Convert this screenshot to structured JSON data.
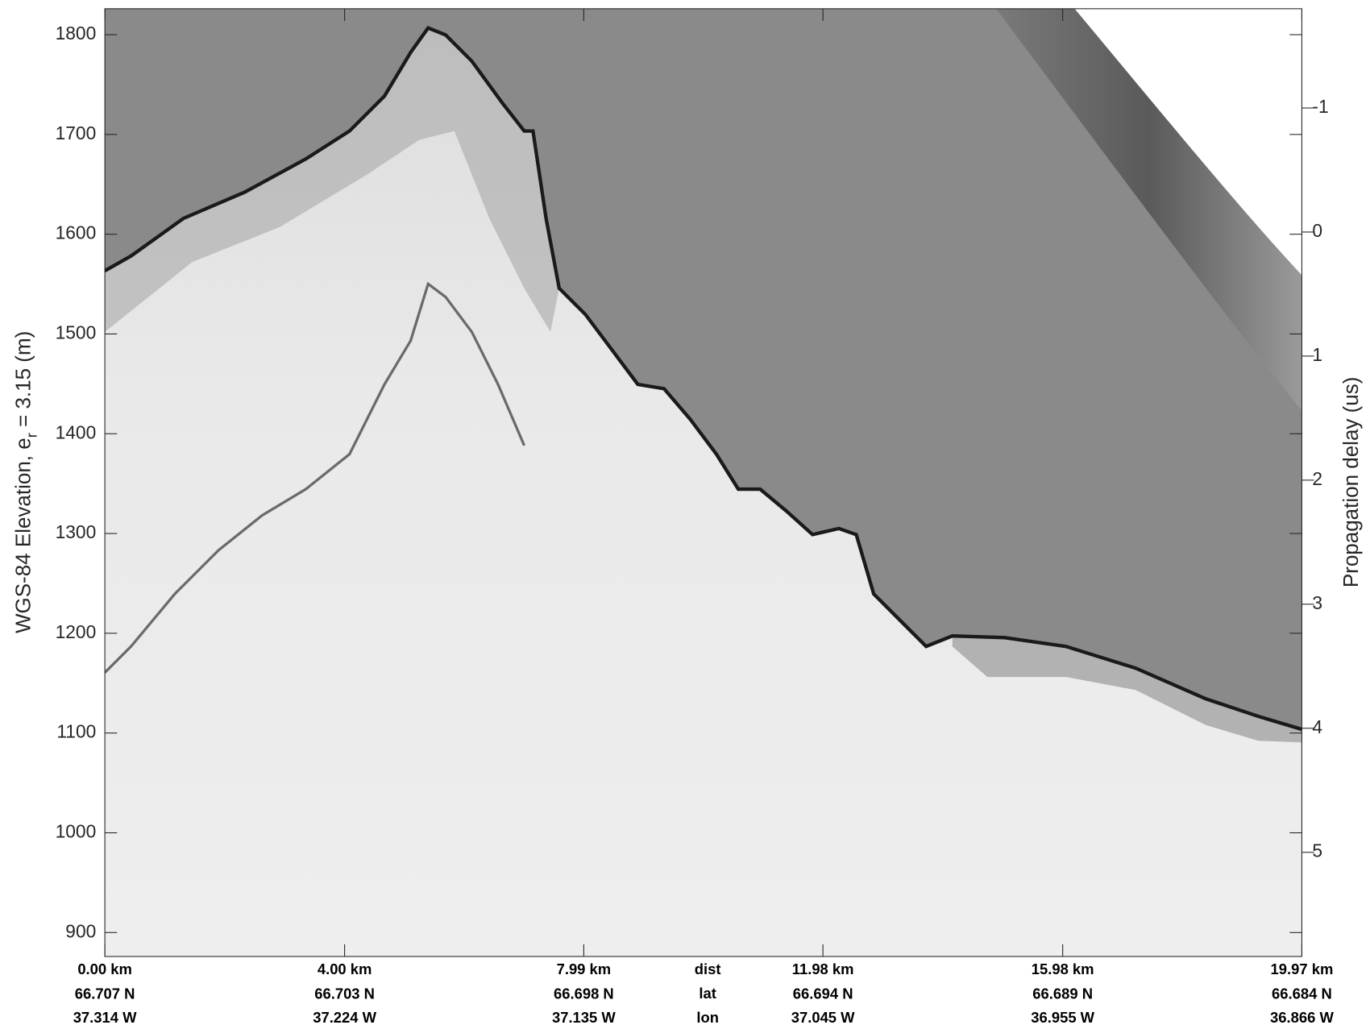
{
  "chart_data": {
    "type": "radargram",
    "ylabel": "WGS-84 Elevation, e",
    "ylabel_sub": "r",
    "ylabel_rest": " = 3.15 (m)",
    "y2label": "Propagation delay (us)",
    "ylim": [
      876,
      1826
    ],
    "yticks": [
      900,
      1000,
      1100,
      1200,
      1300,
      1400,
      1500,
      1600,
      1700,
      1800
    ],
    "y2lim": [
      5.84,
      -1.8
    ],
    "y2ticks": [
      -1,
      0,
      1,
      2,
      3,
      4,
      5
    ],
    "xlim": [
      0,
      19.97
    ],
    "xticks": [
      {
        "value": 0,
        "label": "0.00 km"
      },
      {
        "value": 4.0,
        "label": "4.00 km"
      },
      {
        "value": 7.99,
        "label": "7.99 km"
      },
      {
        "value": 11.98,
        "label": "11.98 km"
      },
      {
        "value": 15.98,
        "label": "15.98 km"
      },
      {
        "value": 19.97,
        "label": "19.97 km"
      }
    ],
    "lat_labels": [
      "66.707 N",
      "66.703 N",
      "66.698 N",
      "66.694 N",
      "66.689 N",
      "66.684 N"
    ],
    "lon_labels": [
      "37.314 W",
      "37.224 W",
      "37.135 W",
      "37.045 W",
      "36.955 W",
      "36.866 W"
    ],
    "row_labels": [
      "dist",
      "lat",
      "lon"
    ]
  }
}
